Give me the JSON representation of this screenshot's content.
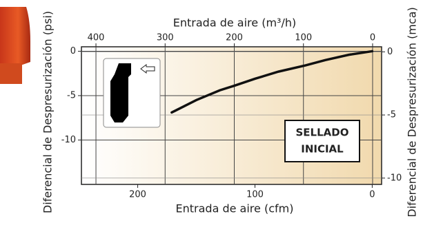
{
  "chart_data": {
    "type": "line",
    "x_label": "Entrada de aire (cfm)",
    "x2_label": "Entrada de aire (m³/h)",
    "y_label": "Diferencial de Despresurización (psi)",
    "y2_label": "Diferencial de Despresurización (mca)",
    "annotation": [
      "SELLADO",
      "INICIAL"
    ],
    "xlim": [
      248,
      -8
    ],
    "xticks": [
      200,
      100,
      0
    ],
    "x2lim": [
      421,
      -13
    ],
    "x2ticks": [
      400,
      300,
      200,
      100,
      0
    ],
    "ylim": [
      -15,
      0.5
    ],
    "yticks": [
      0,
      -5,
      -10
    ],
    "y2lim": [
      -10.5,
      0.4
    ],
    "y2ticks": [
      0,
      -5,
      -10
    ],
    "grid": true,
    "series": [
      {
        "color": "#111111",
        "x": [
          171,
          150,
          130,
          118,
          100,
          80,
          57,
          40,
          20,
          0
        ],
        "values": [
          -6.9,
          -5.5,
          -4.4,
          -3.9,
          -3.1,
          -2.3,
          -1.6,
          -1.0,
          -0.4,
          0
        ]
      }
    ]
  }
}
